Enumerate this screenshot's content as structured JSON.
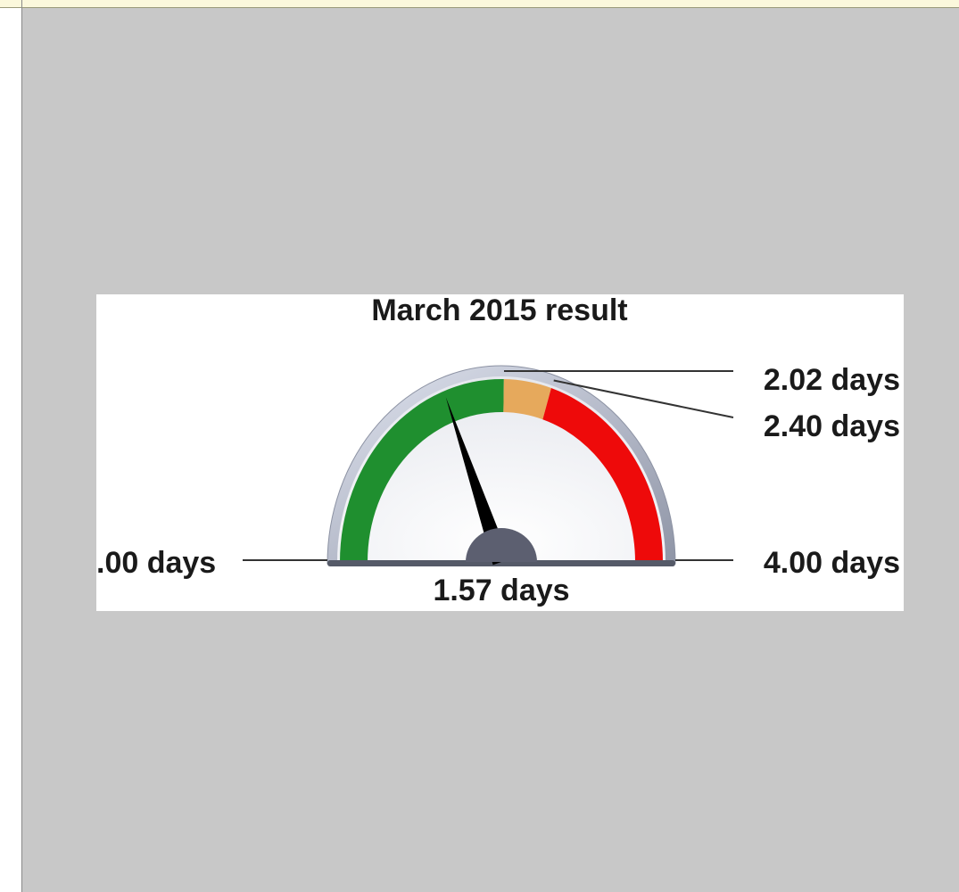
{
  "chart_data": {
    "type": "gauge",
    "title": "March 2015 result",
    "value": 1.57,
    "value_label": "1.57 days",
    "ylim": [
      0,
      4
    ],
    "yticks": [
      {
        "value": 0,
        "label": ".00 days"
      },
      {
        "value": 2.02,
        "label": "2.02 days"
      },
      {
        "value": 2.4,
        "label": "2.40 days"
      },
      {
        "value": 4,
        "label": "4.00 days"
      }
    ],
    "band_colors": [
      "#1f8f2f",
      "#e6a95c",
      "#ee0a0a"
    ],
    "needle_color": "#000000"
  }
}
